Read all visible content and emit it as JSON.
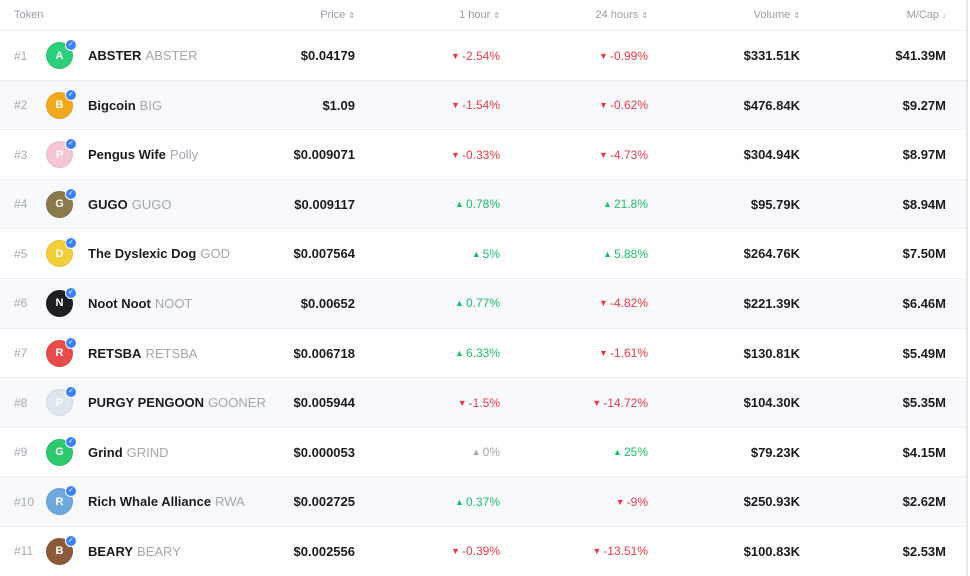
{
  "header": {
    "token": "Token",
    "price": "Price",
    "h1": "1 hour",
    "h24": "24 hours",
    "volume": "Volume",
    "mcap": "M/Cap",
    "sort_both": "⇕",
    "sort_down": "↓"
  },
  "rows": [
    {
      "rank": "#1",
      "name": "ABSTER",
      "symbol": "ABSTER",
      "price": "$0.04179",
      "h1": "-2.54%",
      "h1_dir": "down",
      "h24": "-0.99%",
      "h24_dir": "down",
      "volume": "$331.51K",
      "mcap": "$41.39M",
      "avatar_bg": "#2ecf7a",
      "avatar_glyph": "A"
    },
    {
      "rank": "#2",
      "name": "Bigcoin",
      "symbol": "BIG",
      "price": "$1.09",
      "h1": "-1.54%",
      "h1_dir": "down",
      "h24": "-0.62%",
      "h24_dir": "down",
      "volume": "$476.84K",
      "mcap": "$9.27M",
      "avatar_bg": "#f2a81e",
      "avatar_glyph": "B"
    },
    {
      "rank": "#3",
      "name": "Pengus Wife",
      "symbol": "Polly",
      "price": "$0.009071",
      "h1": "-0.33%",
      "h1_dir": "down",
      "h24": "-4.73%",
      "h24_dir": "down",
      "volume": "$304.94K",
      "mcap": "$8.97M",
      "avatar_bg": "#f4c6d8",
      "avatar_glyph": "P"
    },
    {
      "rank": "#4",
      "name": "GUGO",
      "symbol": "GUGO",
      "price": "$0.009117",
      "h1": "0.78%",
      "h1_dir": "up",
      "h24": "21.8%",
      "h24_dir": "up",
      "volume": "$95.79K",
      "mcap": "$8.94M",
      "avatar_bg": "#8a7a4a",
      "avatar_glyph": "G"
    },
    {
      "rank": "#5",
      "name": "The Dyslexic Dog",
      "symbol": "GOD",
      "price": "$0.007564",
      "h1": "5%",
      "h1_dir": "up",
      "h24": "5.88%",
      "h24_dir": "up",
      "volume": "$264.76K",
      "mcap": "$7.50M",
      "avatar_bg": "#f2cf3a",
      "avatar_glyph": "D"
    },
    {
      "rank": "#6",
      "name": "Noot Noot",
      "symbol": "NOOT",
      "price": "$0.00652",
      "h1": "0.77%",
      "h1_dir": "up",
      "h24": "-4.82%",
      "h24_dir": "down",
      "volume": "$221.39K",
      "mcap": "$6.46M",
      "avatar_bg": "#1e1e24",
      "avatar_glyph": "N"
    },
    {
      "rank": "#7",
      "name": "RETSBA",
      "symbol": "RETSBA",
      "price": "$0.006718",
      "h1": "6.33%",
      "h1_dir": "up",
      "h24": "-1.61%",
      "h24_dir": "down",
      "volume": "$130.81K",
      "mcap": "$5.49M",
      "avatar_bg": "#e84b4b",
      "avatar_glyph": "R"
    },
    {
      "rank": "#8",
      "name": "PURGY PENGOON",
      "symbol": "GOONER",
      "price": "$0.005944",
      "h1": "-1.5%",
      "h1_dir": "down",
      "h24": "-14.72%",
      "h24_dir": "down",
      "volume": "$104.30K",
      "mcap": "$5.35M",
      "avatar_bg": "#dfe6f0",
      "avatar_glyph": "P"
    },
    {
      "rank": "#9",
      "name": "Grind",
      "symbol": "GRIND",
      "price": "$0.000053",
      "h1": "0%",
      "h1_dir": "flat",
      "h24": "25%",
      "h24_dir": "up",
      "volume": "$79.23K",
      "mcap": "$4.15M",
      "avatar_bg": "#2ec86e",
      "avatar_glyph": "G"
    },
    {
      "rank": "#10",
      "name": "Rich Whale Alliance",
      "symbol": "RWA",
      "price": "$0.002725",
      "h1": "0.37%",
      "h1_dir": "up",
      "h24": "-9%",
      "h24_dir": "down",
      "volume": "$250.93K",
      "mcap": "$2.62M",
      "avatar_bg": "#6fa8dc",
      "avatar_glyph": "R"
    },
    {
      "rank": "#11",
      "name": "BEARY",
      "symbol": "BEARY",
      "price": "$0.002556",
      "h1": "-0.39%",
      "h1_dir": "down",
      "h24": "-13.51%",
      "h24_dir": "down",
      "volume": "$100.83K",
      "mcap": "$2.53M",
      "avatar_bg": "#8a5a3a",
      "avatar_glyph": "B"
    }
  ],
  "colors": {
    "up": "#1fbe6b",
    "down": "#e83a4a",
    "flat": "#a4a7b3",
    "verified": "#3b82f6"
  }
}
